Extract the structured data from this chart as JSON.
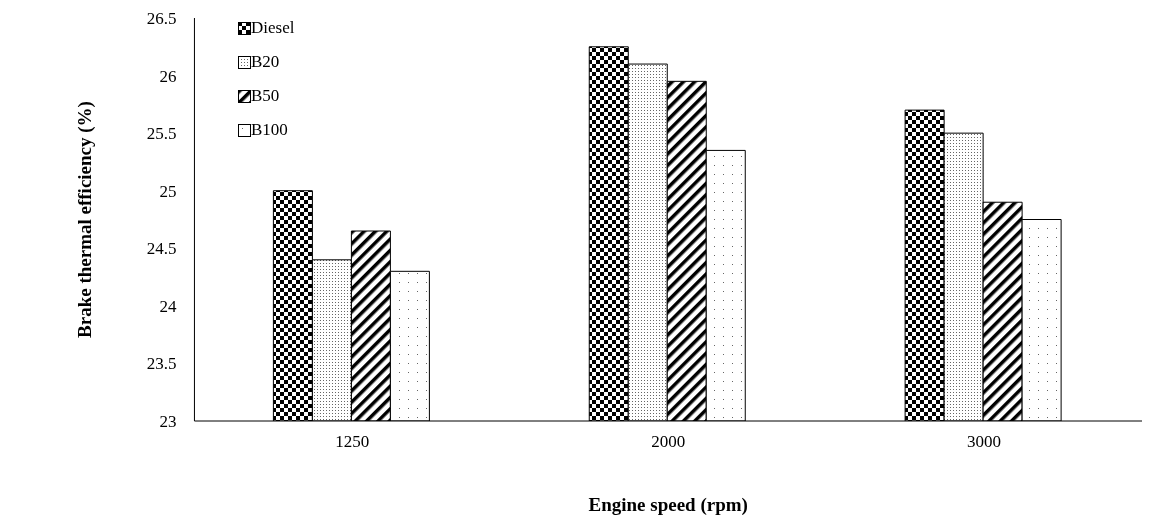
{
  "chart_data": {
    "type": "bar",
    "xlabel": "Engine speed (rpm)",
    "ylabel": "Brake thermal efficiency (%)",
    "categories": [
      "1250",
      "2000",
      "3000"
    ],
    "series": [
      {
        "name": "Diesel",
        "color": "#000000",
        "values": [
          25,
          26.25,
          25.7
        ]
      },
      {
        "name": "B20",
        "color": "#000000",
        "values": [
          24.4,
          26.1,
          25.5
        ]
      },
      {
        "name": "B50",
        "color": "#000000",
        "values": [
          24.65,
          25.95,
          24.9
        ]
      },
      {
        "name": "B100",
        "color": "#000000",
        "values": [
          24.3,
          25.35,
          24.75
        ]
      }
    ],
    "ylim": [
      23,
      26.5
    ],
    "yticks": [
      23,
      23.5,
      24,
      24.5,
      25,
      25.5,
      26,
      26.5
    ],
    "grid": false,
    "legend": "top left"
  }
}
